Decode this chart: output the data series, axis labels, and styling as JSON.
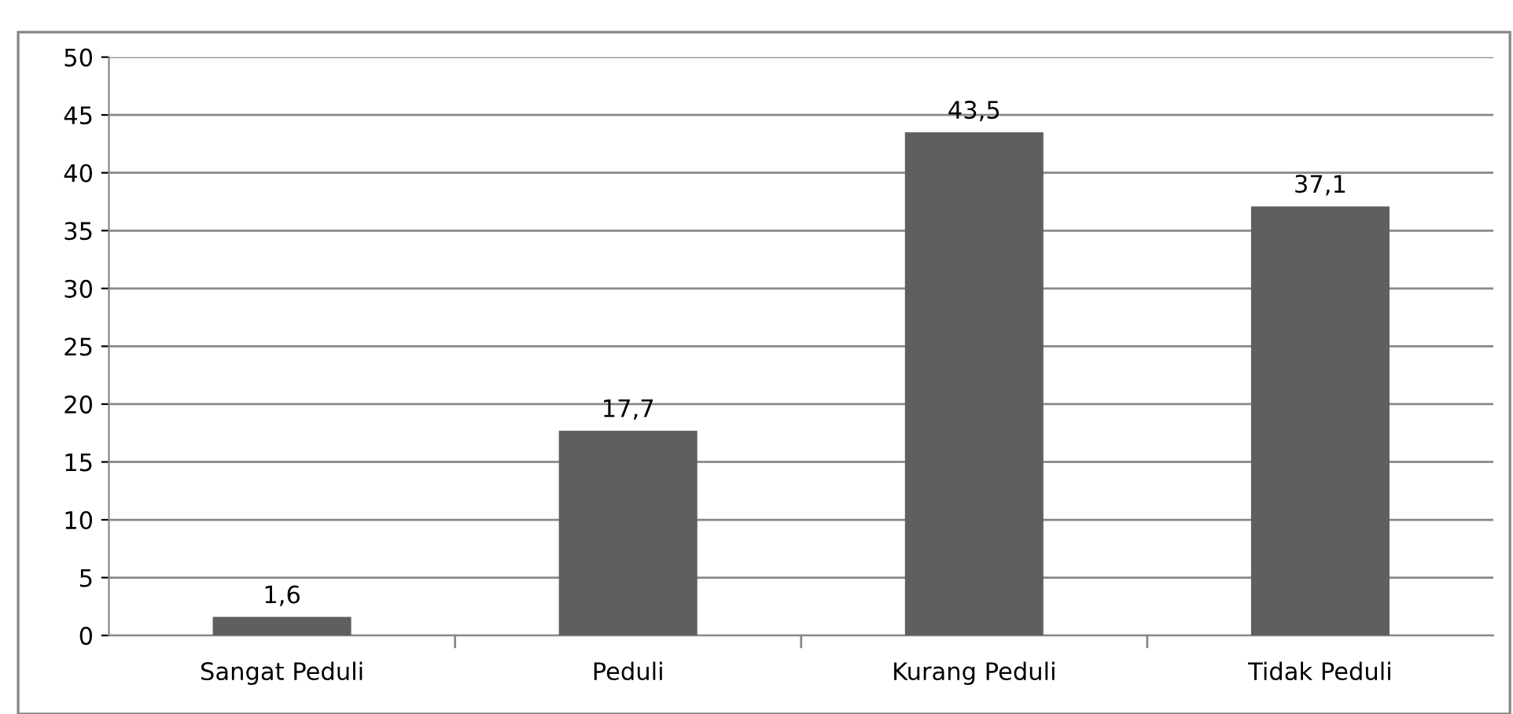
{
  "chart_data": {
    "type": "bar",
    "categories": [
      "Sangat Peduli",
      "Peduli",
      "Kurang Peduli",
      "Tidak Peduli"
    ],
    "values": [
      1.6,
      17.7,
      43.5,
      37.1
    ],
    "value_labels": [
      "1,6",
      "17,7",
      "43,5",
      "37,1"
    ],
    "color": "#5f5f5f",
    "ylim": [
      0,
      50
    ],
    "yticks": [
      0,
      5,
      10,
      15,
      20,
      25,
      30,
      35,
      40,
      45,
      50
    ],
    "grid": "y",
    "legend": false
  }
}
